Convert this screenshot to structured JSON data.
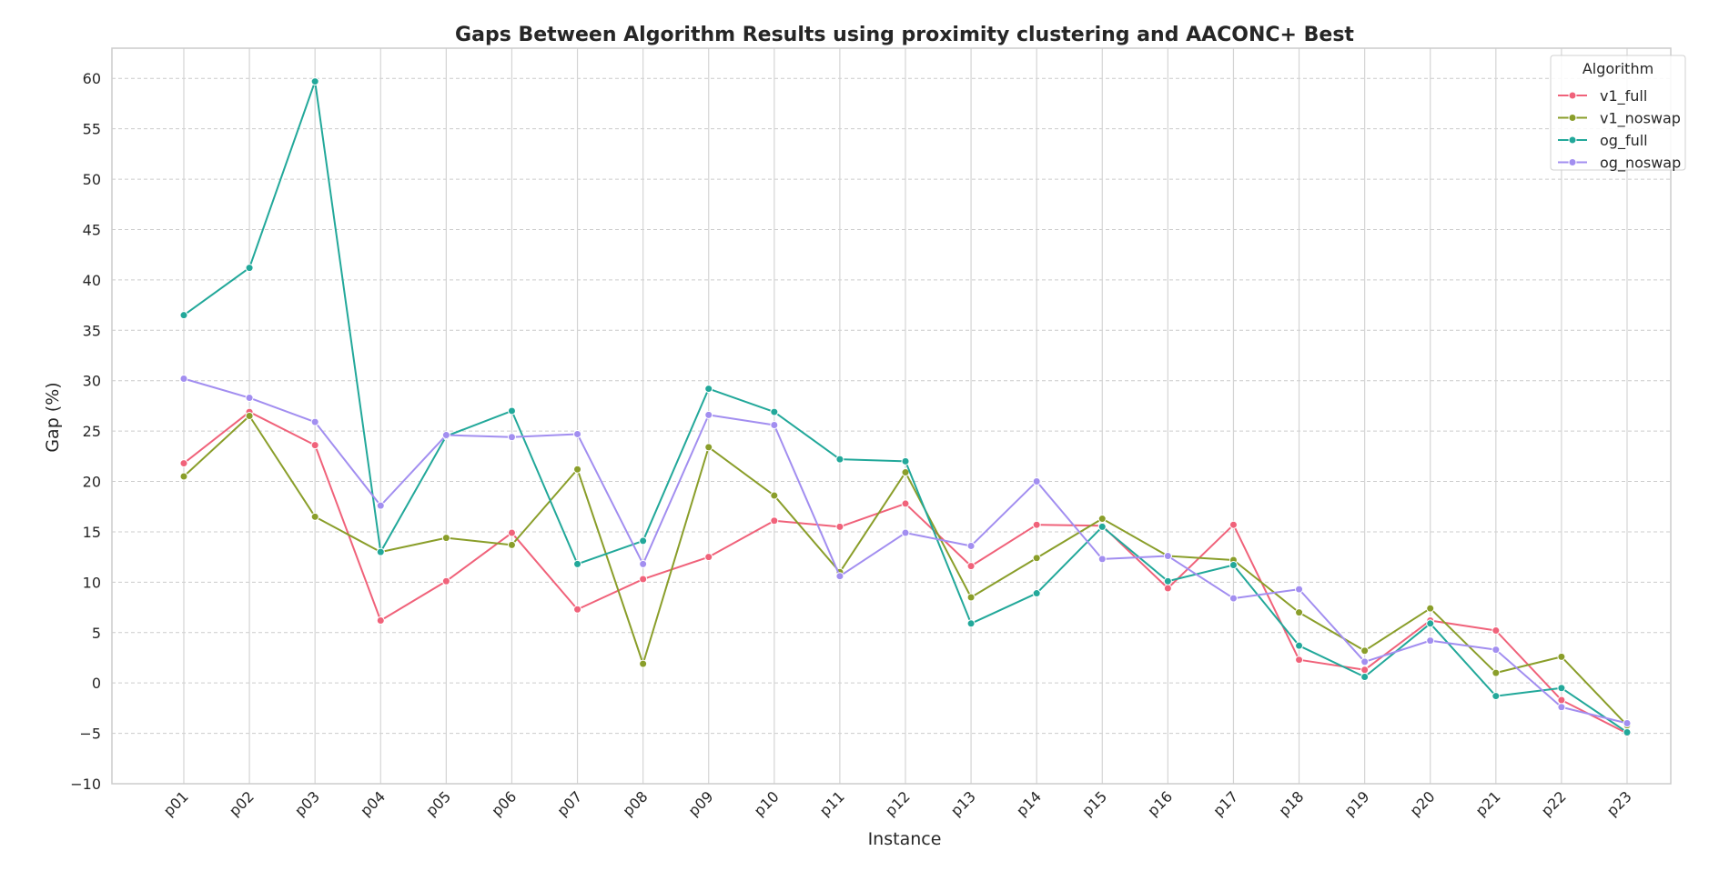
{
  "chart_data": {
    "type": "line",
    "title": "Gaps Between Algorithm Results using proximity clustering and AACONC+ Best",
    "xlabel": "Instance",
    "ylabel": "Gap (%)",
    "ylim": [
      -10,
      63
    ],
    "yticks": [
      -10,
      -5,
      0,
      5,
      10,
      15,
      20,
      25,
      30,
      35,
      40,
      45,
      50,
      55,
      60
    ],
    "ytick_labels": [
      "−10",
      "−5",
      "0",
      "5",
      "10",
      "15",
      "20",
      "25",
      "30",
      "35",
      "40",
      "45",
      "50",
      "55",
      "60"
    ],
    "grid": true,
    "legend_title": "Algorithm",
    "legend_position": "top-right",
    "categories": [
      "p01",
      "p02",
      "p03",
      "p04",
      "p05",
      "p06",
      "p07",
      "p08",
      "p09",
      "p10",
      "p11",
      "p12",
      "p13",
      "p14",
      "p15",
      "p16",
      "p17",
      "p18",
      "p19",
      "p20",
      "p21",
      "p22",
      "p23"
    ],
    "series": [
      {
        "name": "v1_full",
        "color": "#f0627a",
        "values": [
          21.8,
          26.9,
          23.6,
          6.2,
          10.1,
          14.9,
          7.3,
          10.3,
          12.5,
          16.1,
          15.5,
          17.8,
          11.6,
          15.7,
          15.6,
          9.4,
          15.7,
          2.3,
          1.3,
          6.2,
          5.2,
          -1.7,
          -5.0
        ]
      },
      {
        "name": "v1_noswap",
        "color": "#8a9e2a",
        "values": [
          20.5,
          26.5,
          16.5,
          13.0,
          14.4,
          13.7,
          21.2,
          1.9,
          23.4,
          18.6,
          11.0,
          20.9,
          8.5,
          12.4,
          16.3,
          12.6,
          12.2,
          7.0,
          3.2,
          7.4,
          1.0,
          2.6,
          -4.2
        ]
      },
      {
        "name": "og_full",
        "color": "#22a89a",
        "values": [
          36.5,
          41.2,
          59.7,
          13.0,
          24.5,
          27.0,
          11.8,
          14.1,
          29.2,
          26.9,
          22.2,
          22.0,
          5.9,
          8.9,
          15.5,
          10.1,
          11.7,
          3.7,
          0.6,
          5.9,
          -1.3,
          -0.5,
          -4.9
        ]
      },
      {
        "name": "og_noswap",
        "color": "#a28ef0",
        "values": [
          30.2,
          28.3,
          25.9,
          17.6,
          24.6,
          24.4,
          24.7,
          11.8,
          26.6,
          25.6,
          10.6,
          14.9,
          13.6,
          20.0,
          12.3,
          12.6,
          8.4,
          9.3,
          2.1,
          4.2,
          3.3,
          -2.4,
          -4.0
        ]
      }
    ]
  }
}
